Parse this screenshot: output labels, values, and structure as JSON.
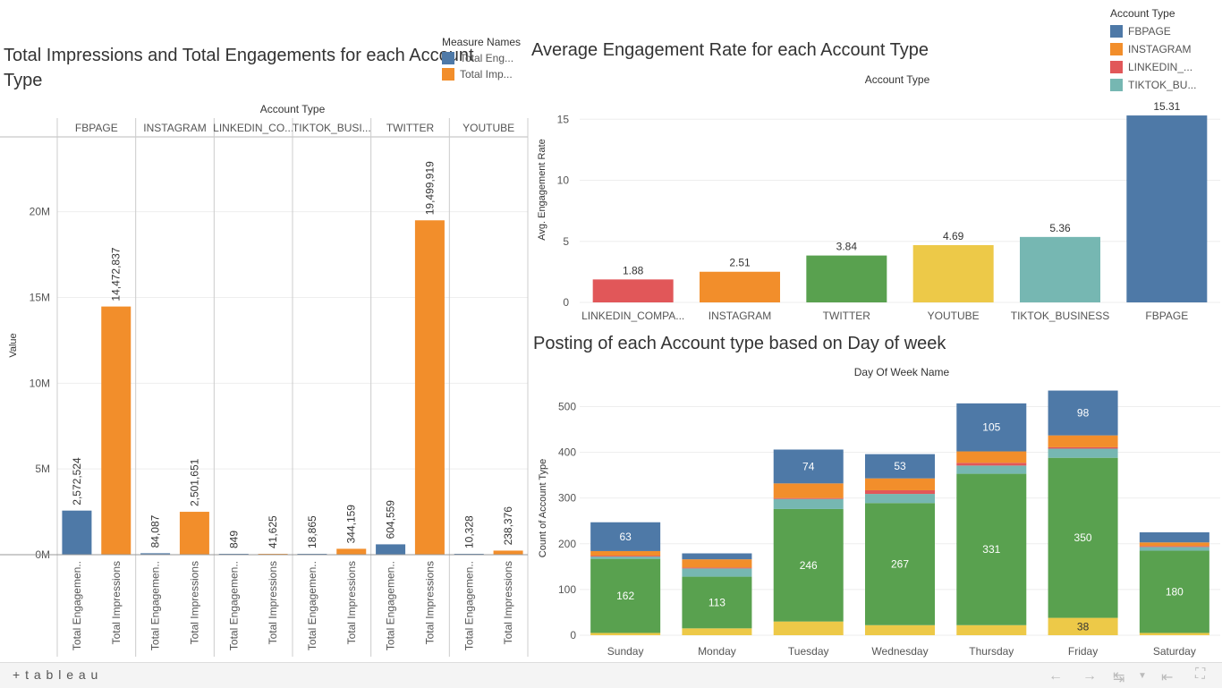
{
  "colors": {
    "fbpage": "#4E79A7",
    "instagram": "#F28E2B",
    "linkedin": "#E15759",
    "tiktok": "#76B7B2",
    "twitter": "#59A14F",
    "youtube": "#EDC948"
  },
  "left_legend": {
    "title": "Measure Names",
    "items": [
      {
        "label": "Total Eng...",
        "color": "#4E79A7"
      },
      {
        "label": "Total Imp...",
        "color": "#F28E2B"
      }
    ]
  },
  "right_legend": {
    "title": "Account Type",
    "items": [
      {
        "label": "FBPAGE",
        "color": "#4E79A7"
      },
      {
        "label": "INSTAGRAM",
        "color": "#F28E2B"
      },
      {
        "label": "LINKEDIN_...",
        "color": "#E15759"
      },
      {
        "label": "TIKTOK_BU...",
        "color": "#76B7B2"
      }
    ]
  },
  "footer": {
    "brand": "+ t a b l e a u"
  },
  "chart_data": [
    {
      "type": "bar",
      "title": "Total Impressions and Total Engagements for each Account Type",
      "header": "Account Type",
      "ylabel": "Value",
      "ylim": [
        0,
        24000000
      ],
      "yticks": [
        0,
        5000000,
        10000000,
        15000000,
        20000000
      ],
      "ytick_labels": [
        "0M",
        "5M",
        "10M",
        "15M",
        "20M"
      ],
      "categories": [
        "FBPAGE",
        "INSTAGRAM",
        "LINKEDIN_CO...",
        "TIKTOK_BUSI...",
        "TWITTER",
        "YOUTUBE"
      ],
      "x_labels": [
        "Total Engagemen..",
        "Total Impressions"
      ],
      "series": [
        {
          "name": "Total Eng...",
          "values": [
            2572524,
            84087,
            849,
            18865,
            604559,
            10328
          ],
          "labels": [
            "2,572,524",
            "84,087",
            "849",
            "18,865",
            "604,559",
            "10,328"
          ]
        },
        {
          "name": "Total Imp...",
          "values": [
            14472837,
            2501651,
            41625,
            344159,
            19499919,
            238376
          ],
          "labels": [
            "14,472,837",
            "2,501,651",
            "41,625",
            "344,159",
            "19,499,919",
            "238,376"
          ]
        }
      ]
    },
    {
      "type": "bar",
      "title": "Average Engagement Rate for each Account Type",
      "header": "Account Type",
      "ylabel": "Avg. Engagement Rate",
      "ylim": [
        0,
        17
      ],
      "yticks": [
        0,
        5,
        10,
        15
      ],
      "categories": [
        "LINKEDIN_COMPA...",
        "INSTAGRAM",
        "TWITTER",
        "YOUTUBE",
        "TIKTOK_BUSINESS",
        "FBPAGE"
      ],
      "values": [
        1.88,
        2.51,
        3.84,
        4.69,
        5.36,
        15.31
      ],
      "labels": [
        "1.88",
        "2.51",
        "3.84",
        "4.69",
        "5.36",
        "15.31"
      ],
      "colors": [
        "#E15759",
        "#F28E2B",
        "#59A14F",
        "#EDC948",
        "#76B7B2",
        "#4E79A7"
      ]
    },
    {
      "type": "bar",
      "stacked": true,
      "title": "Posting of each Account type based on Day of week",
      "header": "Day Of Week Name",
      "ylabel": "Count of Account Type",
      "ylim": [
        0,
        540
      ],
      "yticks": [
        0,
        100,
        200,
        300,
        400,
        500
      ],
      "categories": [
        "Sunday",
        "Monday",
        "Tuesday",
        "Wednesday",
        "Thursday",
        "Friday",
        "Saturday"
      ],
      "series": [
        {
          "name": "YOUTUBE",
          "color": "#EDC948",
          "values": [
            5,
            15,
            30,
            22,
            22,
            38,
            5
          ],
          "labels": [
            "",
            "",
            "",
            "",
            "",
            "38",
            ""
          ]
        },
        {
          "name": "TWITTER",
          "color": "#59A14F",
          "values": [
            162,
            113,
            246,
            267,
            331,
            350,
            180
          ],
          "labels": [
            "162",
            "113",
            "246",
            "267",
            "331",
            "350",
            "180"
          ]
        },
        {
          "name": "TIKTOK_BUSINESS",
          "color": "#76B7B2",
          "values": [
            5,
            18,
            22,
            20,
            18,
            20,
            8
          ],
          "labels": [
            "",
            "",
            "",
            "",
            "",
            "",
            ""
          ]
        },
        {
          "name": "LINKEDIN_COMPANY",
          "color": "#E15759",
          "values": [
            2,
            2,
            2,
            8,
            6,
            3,
            2
          ],
          "labels": [
            "",
            "",
            "",
            "",
            "",
            "",
            ""
          ]
        },
        {
          "name": "INSTAGRAM",
          "color": "#F28E2B",
          "values": [
            10,
            18,
            32,
            26,
            25,
            26,
            8
          ],
          "labels": [
            "",
            "",
            "",
            "",
            "",
            "",
            ""
          ]
        },
        {
          "name": "FBPAGE",
          "color": "#4E79A7",
          "values": [
            63,
            13,
            74,
            53,
            105,
            98,
            22
          ],
          "labels": [
            "63",
            "",
            "74",
            "53",
            "105",
            "98",
            ""
          ]
        }
      ]
    }
  ]
}
